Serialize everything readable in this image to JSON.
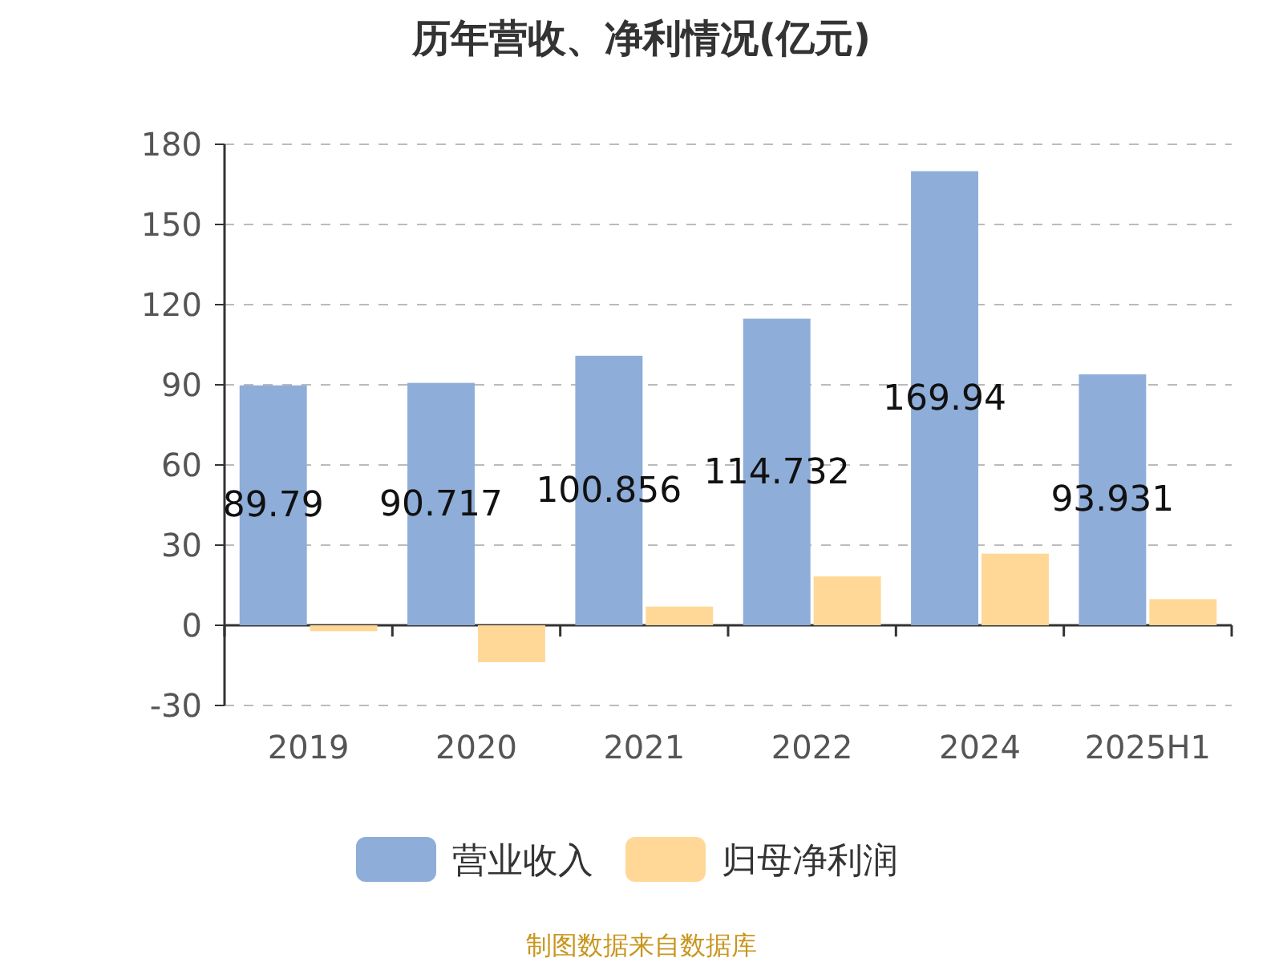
{
  "chart_data": {
    "type": "bar",
    "title": "历年营收、净利情况(亿元)",
    "categories": [
      "2019",
      "2020",
      "2021",
      "2022",
      "2024",
      "2025H1"
    ],
    "series": [
      {
        "name": "营业收入",
        "color": "#8eadd9",
        "values": [
          89.79,
          90.717,
          100.856,
          114.732,
          169.94,
          93.931
        ],
        "value_labels": [
          "89.79",
          "90.717",
          "100.856",
          "114.732",
          "169.94",
          "93.931"
        ]
      },
      {
        "name": "归母净利润",
        "color": "#ffd898",
        "values": [
          -2.2,
          -13.8,
          7.0,
          18.3,
          26.8,
          9.8
        ]
      }
    ],
    "ylim": [
      -30,
      180
    ],
    "yticks": [
      -30,
      0,
      30,
      60,
      90,
      120,
      150,
      180
    ],
    "grid": "y",
    "legend": "bottom",
    "annotations": [
      "制图数据来自数据库"
    ]
  }
}
